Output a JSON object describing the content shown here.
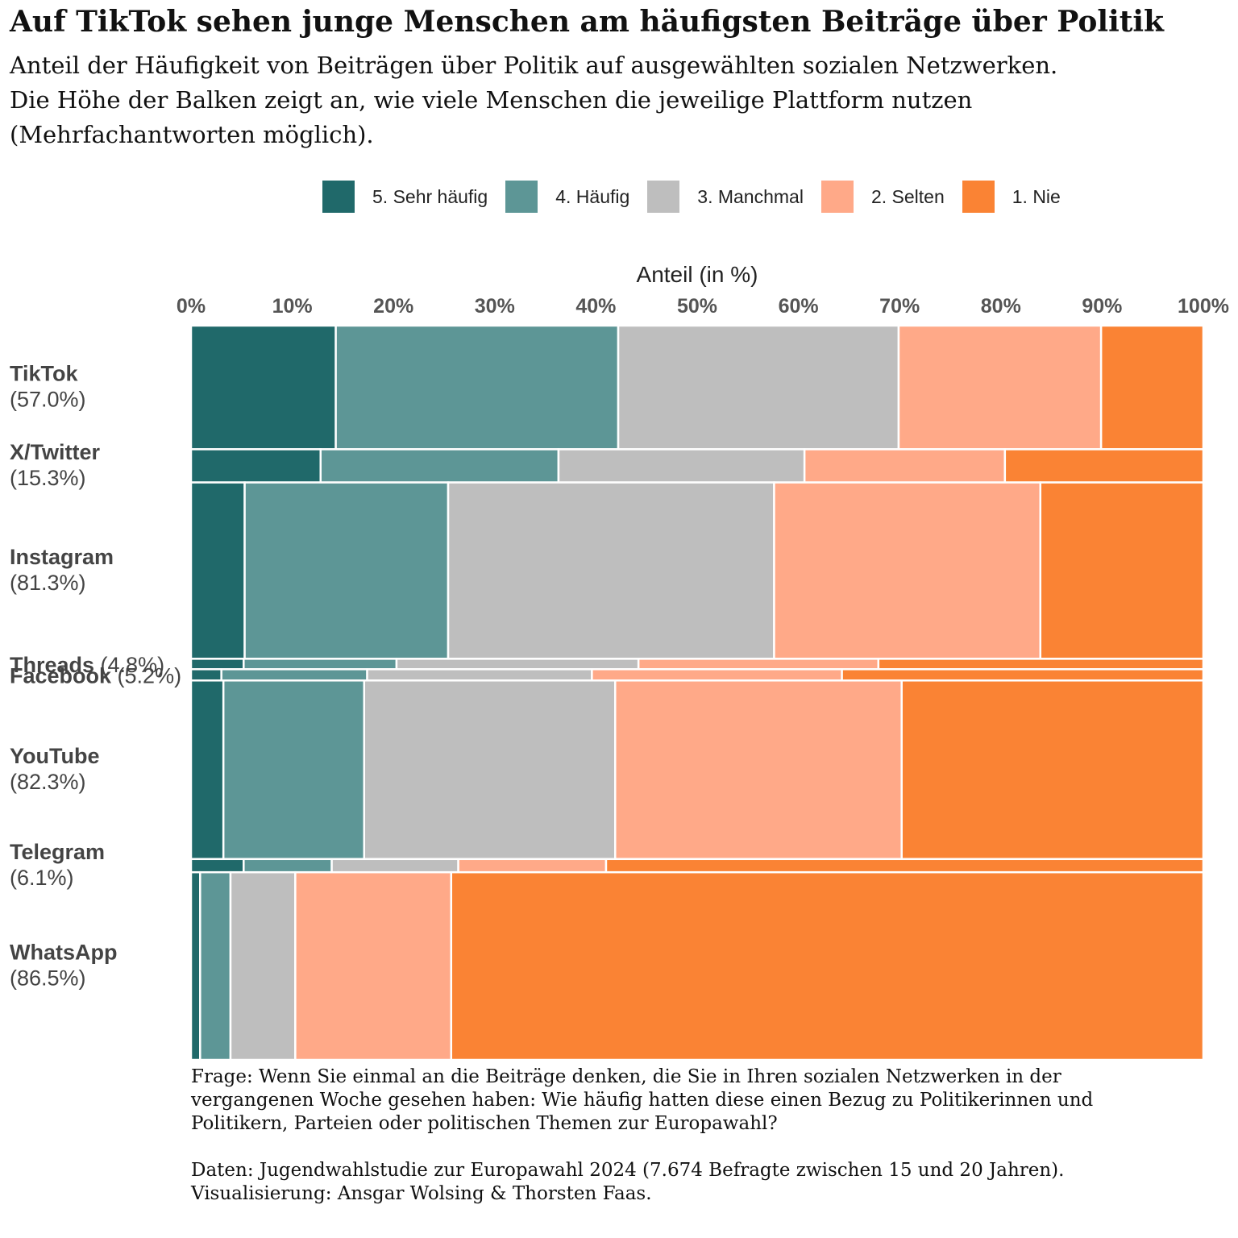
{
  "title": "Auf TikTok sehen junge Menschen am häufigsten Beiträge über Politik",
  "subtitle_lines": [
    "Anteil der Häufigkeit von Beiträgen über Politik auf ausgewählten sozialen Netzwerken.",
    "Die Höhe der Balken zeigt an, wie viele Menschen die jeweilige Plattform nutzen",
    "(Mehrfachantworten möglich)."
  ],
  "legend": [
    {
      "label": "5. Sehr häufig",
      "color": "#20696A"
    },
    {
      "label": "4. Häufig",
      "color": "#5D9696"
    },
    {
      "label": "3. Manchmal",
      "color": "#BEBEBE"
    },
    {
      "label": "2. Selten",
      "color": "#FFA988"
    },
    {
      "label": "1. Nie",
      "color": "#FA8334"
    }
  ],
  "chart_data": {
    "type": "bar",
    "orientation": "horizontal-stacked-mosaic",
    "xlabel": "Anteil (in %)",
    "xlim": [
      0,
      100
    ],
    "x_ticks": [
      "0%",
      "10%",
      "20%",
      "30%",
      "40%",
      "50%",
      "60%",
      "70%",
      "80%",
      "90%",
      "100%"
    ],
    "categories": [
      {
        "name": "TikTok",
        "usage_label": "(57.0%)",
        "usage": 57.0,
        "label_layout": "stacked"
      },
      {
        "name": "X/Twitter",
        "usage_label": "(15.3%)",
        "usage": 15.3,
        "label_layout": "stacked"
      },
      {
        "name": "Instagram",
        "usage_label": "(81.3%)",
        "usage": 81.3,
        "label_layout": "stacked"
      },
      {
        "name": "Threads",
        "usage_label": "(4.8%)",
        "usage": 4.8,
        "label_layout": "inline"
      },
      {
        "name": "Facebook",
        "usage_label": "(5.2%)",
        "usage": 5.2,
        "label_layout": "inline"
      },
      {
        "name": "YouTube",
        "usage_label": "(82.3%)",
        "usage": 82.3,
        "label_layout": "stacked"
      },
      {
        "name": "Telegram",
        "usage_label": "(6.1%)",
        "usage": 6.1,
        "label_layout": "stacked"
      },
      {
        "name": "WhatsApp",
        "usage_label": "(86.5%)",
        "usage": 86.5,
        "label_layout": "stacked"
      }
    ],
    "series": [
      {
        "name": "5. Sehr häufig",
        "values": [
          14.3,
          12.8,
          5.3,
          5.2,
          3.0,
          3.2,
          5.2,
          0.9
        ]
      },
      {
        "name": "4. Häufig",
        "values": [
          27.9,
          23.5,
          20.1,
          15.1,
          14.4,
          13.9,
          8.7,
          3.0
        ]
      },
      {
        "name": "3. Manchmal",
        "values": [
          27.7,
          24.3,
          32.2,
          23.9,
          22.2,
          24.8,
          12.5,
          6.4
        ]
      },
      {
        "name": "2. Selten",
        "values": [
          20.0,
          19.8,
          26.3,
          23.7,
          24.7,
          28.3,
          14.6,
          15.4
        ]
      },
      {
        "name": "1. Nie",
        "values": [
          10.1,
          19.6,
          16.1,
          32.1,
          35.7,
          29.8,
          59.0,
          74.3
        ]
      }
    ]
  },
  "notes": {
    "question_lines": [
      "Frage: Wenn Sie einmal an die Beiträge denken, die Sie in Ihren sozialen Netzwerken in der",
      "vergangenen Woche gesehen haben: Wie häufig hatten diese einen Bezug zu Politikerinnen und",
      "Politikern, Parteien oder politischen Themen zur Europawahl?"
    ],
    "source_lines": [
      "Daten: Jugendwahlstudie zur Europawahl 2024 (7.674 Befragte zwischen 15 und 20 Jahren).",
      "Visualisierung: Ansgar Wolsing & Thorsten Faas."
    ]
  }
}
